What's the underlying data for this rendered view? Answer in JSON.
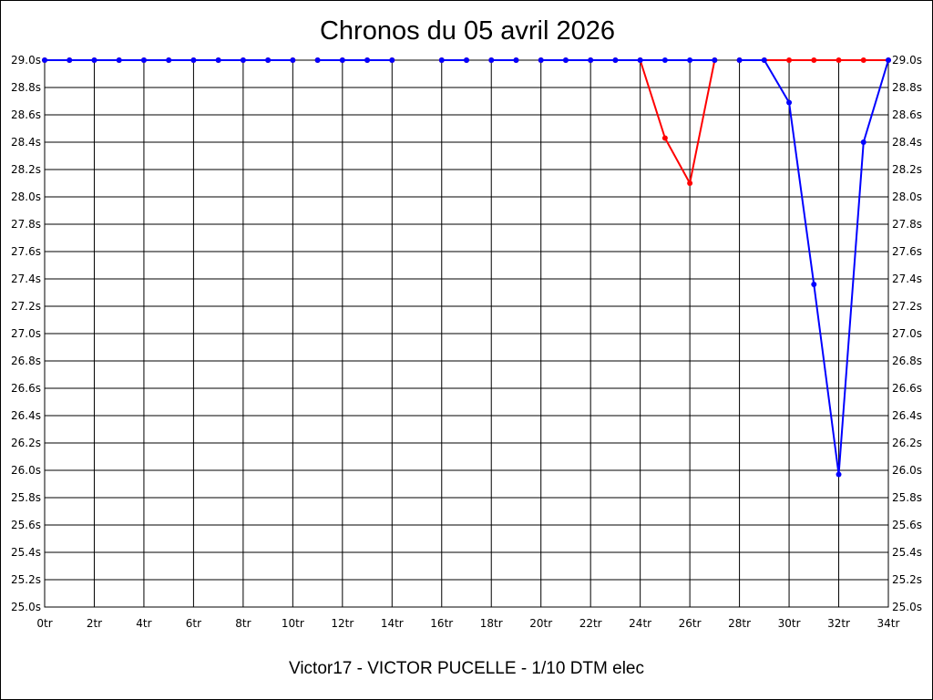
{
  "chart_data": {
    "type": "line",
    "title": "Chronos du 05 avril 2026",
    "subtitle": "Victor17 - VICTOR PUCELLE - 1/10 DTM elec",
    "xlabel": "",
    "ylabel": "",
    "xlim": [
      0,
      34
    ],
    "ylim": [
      25.0,
      29.0
    ],
    "grid": true,
    "x_tick_values": [
      0,
      2,
      4,
      6,
      8,
      10,
      12,
      14,
      16,
      18,
      20,
      22,
      24,
      26,
      28,
      30,
      32,
      34
    ],
    "x_tick_labels": [
      "0tr",
      "2tr",
      "4tr",
      "6tr",
      "8tr",
      "10tr",
      "12tr",
      "14tr",
      "16tr",
      "18tr",
      "20tr",
      "22tr",
      "24tr",
      "26tr",
      "28tr",
      "30tr",
      "32tr",
      "34tr"
    ],
    "y_tick_values": [
      29.0,
      28.8,
      28.6,
      28.4,
      28.2,
      28.0,
      27.8,
      27.6,
      27.4,
      27.2,
      27.0,
      26.8,
      26.6,
      26.4,
      26.2,
      26.0,
      25.8,
      25.6,
      25.4,
      25.2,
      25.0
    ],
    "y_tick_labels": [
      "29.0s",
      "28.8s",
      "28.6s",
      "28.4s",
      "28.2s",
      "28.0s",
      "27.8s",
      "27.6s",
      "27.4s",
      "27.2s",
      "27.0s",
      "26.8s",
      "26.6s",
      "26.4s",
      "26.2s",
      "26.0s",
      "25.8s",
      "25.6s",
      "25.4s",
      "25.2s",
      "25.0s"
    ],
    "series": [
      {
        "color": "#ff0000",
        "segments": [
          [
            [
              0,
              29.0
            ],
            [
              1,
              29.0
            ],
            [
              2,
              29.0
            ],
            [
              3,
              29.0
            ],
            [
              4,
              29.0
            ],
            [
              5,
              29.0
            ],
            [
              6,
              29.0
            ],
            [
              7,
              29.0
            ],
            [
              8,
              29.0
            ],
            [
              9,
              29.0
            ],
            [
              10,
              29.0
            ]
          ],
          [
            [
              11,
              29.0
            ],
            [
              12,
              29.0
            ],
            [
              13,
              29.0
            ],
            [
              14,
              29.0
            ]
          ],
          [
            [
              16,
              29.0
            ],
            [
              17,
              29.0
            ]
          ],
          [
            [
              18,
              29.0
            ],
            [
              19,
              29.0
            ]
          ],
          [
            [
              20,
              29.0
            ],
            [
              21,
              29.0
            ],
            [
              22,
              29.0
            ],
            [
              23,
              29.0
            ],
            [
              24,
              29.0
            ],
            [
              25,
              28.43
            ],
            [
              26,
              28.1
            ],
            [
              27,
              29.0
            ]
          ],
          [
            [
              28,
              29.0
            ],
            [
              29,
              29.0
            ],
            [
              30,
              29.0
            ],
            [
              31,
              29.0
            ],
            [
              32,
              29.0
            ],
            [
              33,
              29.0
            ],
            [
              34,
              29.0
            ]
          ]
        ]
      },
      {
        "color": "#0000ff",
        "segments": [
          [
            [
              0,
              29.0
            ],
            [
              1,
              29.0
            ],
            [
              2,
              29.0
            ],
            [
              3,
              29.0
            ],
            [
              4,
              29.0
            ],
            [
              5,
              29.0
            ],
            [
              6,
              29.0
            ],
            [
              7,
              29.0
            ],
            [
              8,
              29.0
            ],
            [
              9,
              29.0
            ],
            [
              10,
              29.0
            ]
          ],
          [
            [
              11,
              29.0
            ],
            [
              12,
              29.0
            ],
            [
              13,
              29.0
            ],
            [
              14,
              29.0
            ]
          ],
          [
            [
              16,
              29.0
            ],
            [
              17,
              29.0
            ]
          ],
          [
            [
              18,
              29.0
            ],
            [
              19,
              29.0
            ]
          ],
          [
            [
              20,
              29.0
            ],
            [
              21,
              29.0
            ],
            [
              22,
              29.0
            ],
            [
              23,
              29.0
            ],
            [
              24,
              29.0
            ],
            [
              25,
              29.0
            ],
            [
              26,
              29.0
            ],
            [
              27,
              29.0
            ]
          ],
          [
            [
              28,
              29.0
            ],
            [
              29,
              29.0
            ],
            [
              30,
              28.69
            ],
            [
              31,
              27.36
            ],
            [
              32,
              25.97
            ],
            [
              33,
              28.4
            ],
            [
              34,
              29.0
            ]
          ]
        ]
      }
    ]
  }
}
